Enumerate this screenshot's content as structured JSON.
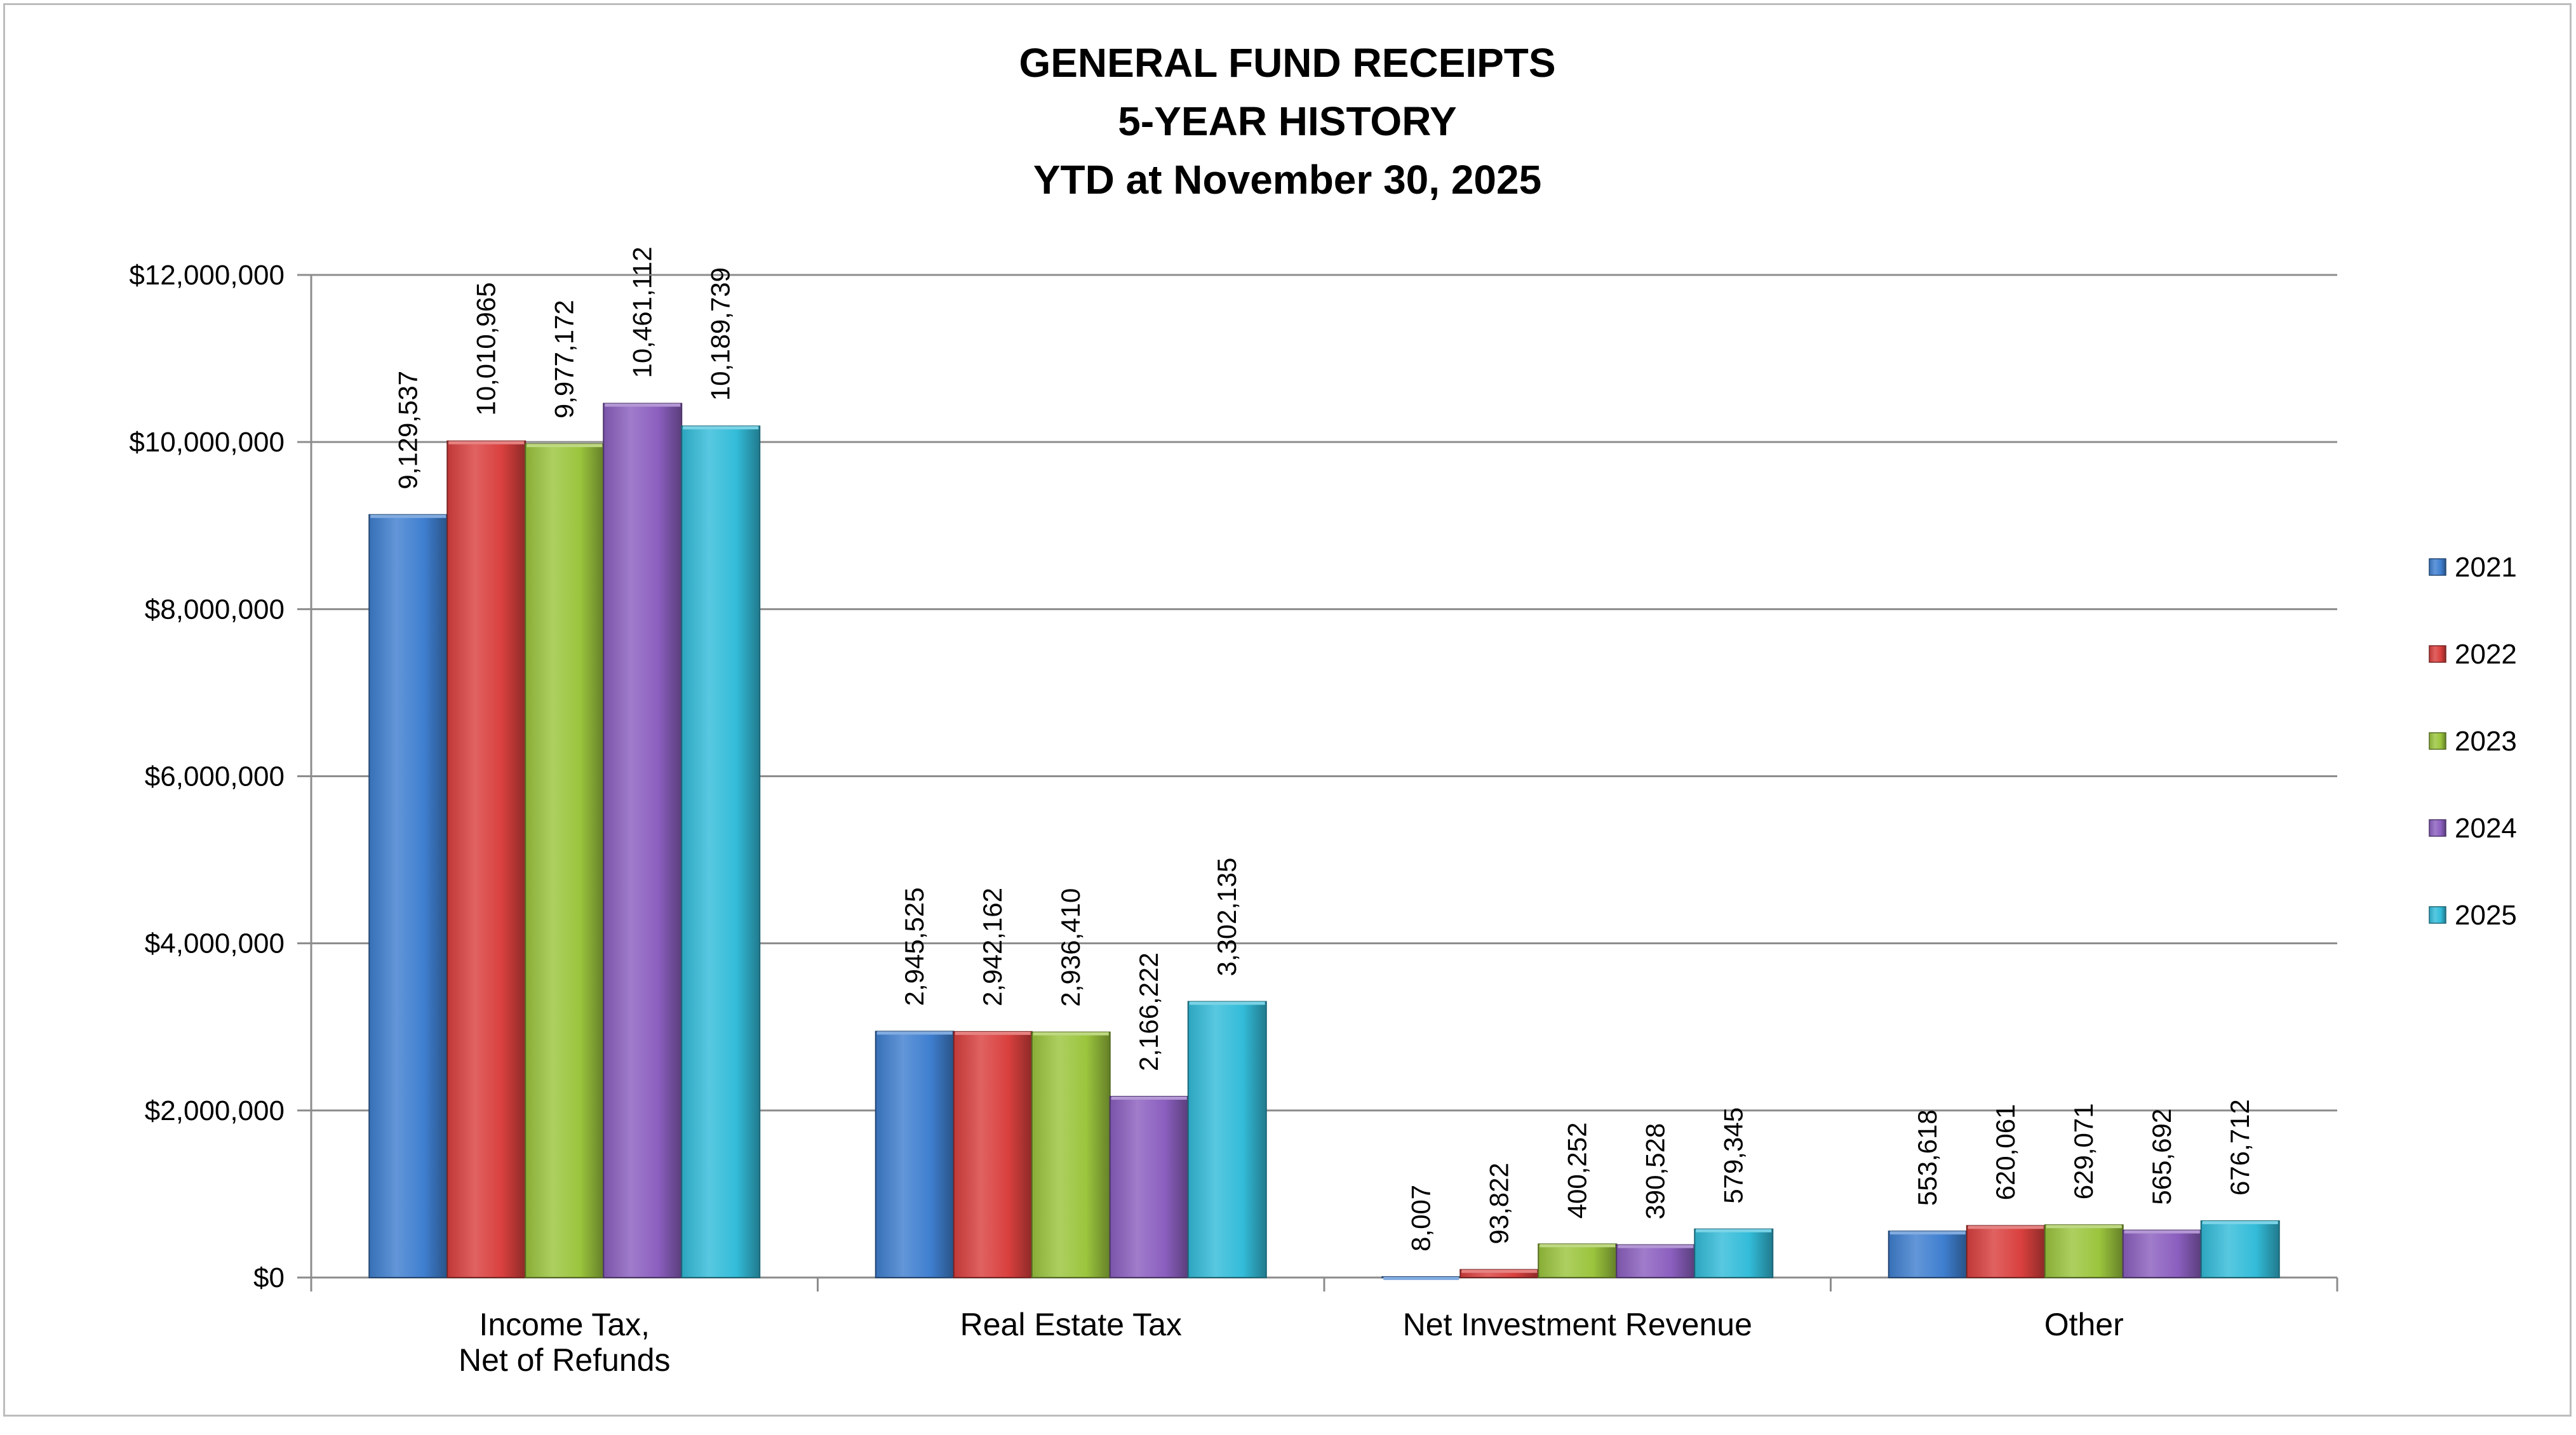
{
  "chart_data": {
    "type": "bar",
    "title_lines": [
      "GENERAL FUND RECEIPTS",
      "5-YEAR HISTORY",
      "YTD at November 30, 2025"
    ],
    "categories": [
      [
        "Income Tax,",
        "Net of Refunds"
      ],
      [
        "Real Estate Tax"
      ],
      [
        "Net Investment Revenue"
      ],
      [
        "Other"
      ]
    ],
    "series": [
      {
        "name": "2021",
        "color": "#3F7FD0",
        "values": [
          9129537,
          2945525,
          8007,
          553618
        ]
      },
      {
        "name": "2022",
        "color": "#D9403E",
        "values": [
          10010965,
          2942162,
          93822,
          620061
        ]
      },
      {
        "name": "2023",
        "color": "#9BC53D",
        "values": [
          9977172,
          2936410,
          400252,
          629071
        ]
      },
      {
        "name": "2024",
        "color": "#8B5FBF",
        "values": [
          10461112,
          2166222,
          390528,
          565692
        ]
      },
      {
        "name": "2025",
        "color": "#33BCD9",
        "values": [
          10189739,
          3302135,
          579345,
          676712
        ]
      }
    ],
    "data_labels": [
      [
        "9,129,537",
        "2,945,525",
        "8,007",
        "553,618"
      ],
      [
        "10,010,965",
        "2,942,162",
        "93,822",
        "620,061"
      ],
      [
        "9,977,172",
        "2,936,410",
        "400,252",
        "629,071"
      ],
      [
        "10,461,112",
        "2,166,222",
        "390,528",
        "565,692"
      ],
      [
        "10,189,739",
        "3,302,135",
        "579,345",
        "676,712"
      ]
    ],
    "y_ticks": [
      0,
      2000000,
      4000000,
      6000000,
      8000000,
      10000000,
      12000000
    ],
    "y_tick_labels": [
      "$0",
      "$2,000,000",
      "$4,000,000",
      "$6,000,000",
      "$8,000,000",
      "$10,000,000",
      "$12,000,000"
    ],
    "ylim": [
      0,
      12000000
    ],
    "grid": true,
    "legend_position": "right"
  }
}
